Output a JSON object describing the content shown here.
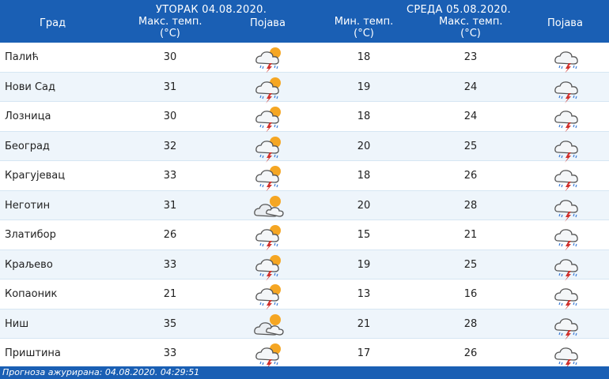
{
  "header": {
    "city_label": "Град",
    "day1_title": "УТОРАК  04.08.2020.",
    "day2_title": "СРЕДА  05.08.2020.",
    "max_temp_line1": "Макс. темп.",
    "min_temp_line1": "Мин. темп.",
    "unit": "(°C)",
    "phenomenon_label": "Појава"
  },
  "rows": [
    {
      "city": "Палић",
      "max1": "30",
      "icon1": "sun-cloud-thunder-icon",
      "min2": "18",
      "max2": "23",
      "icon2": "cloud-rain-thunder-icon"
    },
    {
      "city": "Нови Сад",
      "max1": "31",
      "icon1": "sun-cloud-thunder-icon",
      "min2": "19",
      "max2": "24",
      "icon2": "cloud-rain-thunder-icon"
    },
    {
      "city": "Лозница",
      "max1": "30",
      "icon1": "sun-cloud-thunder-icon",
      "min2": "18",
      "max2": "24",
      "icon2": "cloud-rain-thunder-icon"
    },
    {
      "city": "Београд",
      "max1": "32",
      "icon1": "sun-cloud-thunder-icon",
      "min2": "20",
      "max2": "25",
      "icon2": "cloud-rain-thunder-icon"
    },
    {
      "city": "Крагујевац",
      "max1": "33",
      "icon1": "sun-cloud-thunder-icon",
      "min2": "18",
      "max2": "26",
      "icon2": "cloud-rain-thunder-icon"
    },
    {
      "city": "Неготин",
      "max1": "31",
      "icon1": "sun-cloud-icon",
      "min2": "20",
      "max2": "28",
      "icon2": "cloud-rain-thunder-icon"
    },
    {
      "city": "Златибор",
      "max1": "26",
      "icon1": "sun-cloud-thunder-icon",
      "min2": "15",
      "max2": "21",
      "icon2": "cloud-rain-thunder-icon"
    },
    {
      "city": "Краљево",
      "max1": "33",
      "icon1": "sun-cloud-thunder-icon",
      "min2": "19",
      "max2": "25",
      "icon2": "cloud-rain-thunder-icon"
    },
    {
      "city": "Копаоник",
      "max1": "21",
      "icon1": "sun-cloud-thunder-icon",
      "min2": "13",
      "max2": "16",
      "icon2": "cloud-rain-thunder-icon"
    },
    {
      "city": "Ниш",
      "max1": "35",
      "icon1": "sun-cloud-icon",
      "min2": "21",
      "max2": "28",
      "icon2": "cloud-rain-thunder-icon"
    },
    {
      "city": "Приштина",
      "max1": "33",
      "icon1": "sun-cloud-thunder-icon",
      "min2": "17",
      "max2": "26",
      "icon2": "cloud-rain-thunder-icon"
    }
  ],
  "footer": {
    "updated": "Прогноза ажурирана:  04.08.2020. 04:29:51"
  },
  "colors": {
    "header_bg": "#1a5fb4",
    "alt_row": "#eef5fb",
    "sun": "#f5a623",
    "bolt": "#d0312d",
    "cloud_outline": "#555555"
  }
}
